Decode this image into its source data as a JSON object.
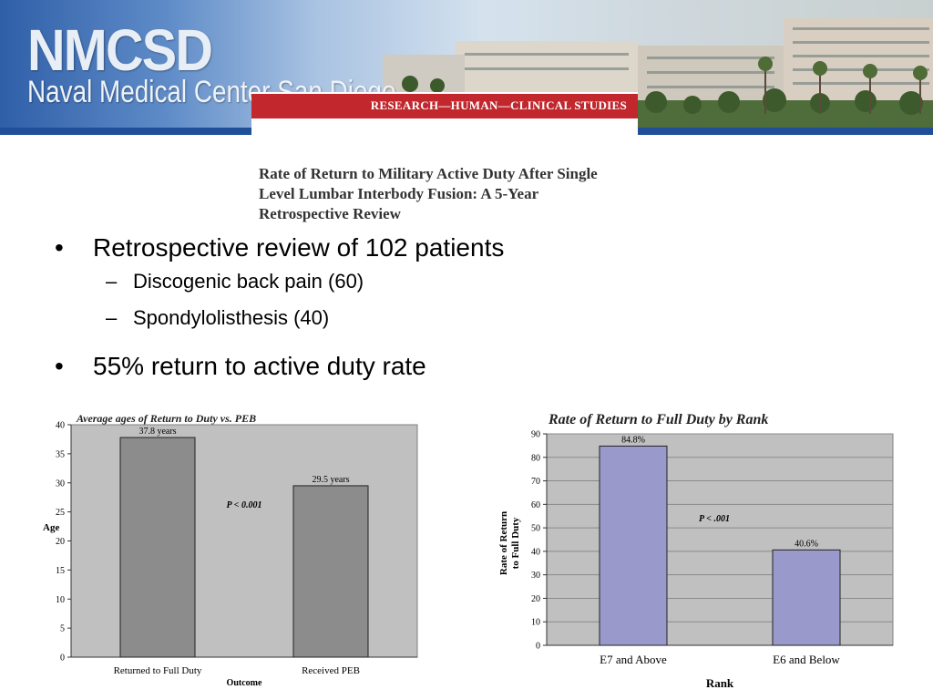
{
  "header": {
    "logo_main": "NMCSD",
    "logo_sub": "Naval Medical Center San Diego",
    "banner": "RESEARCH—HUMAN—CLINICAL STUDIES",
    "colors": {
      "banner": "#c1272d",
      "band": "#1f4f99"
    }
  },
  "paper_title": {
    "line1": "Rate of Return to Military Active Duty After Single",
    "line2": "Level Lumbar Interbody Fusion: A 5-Year",
    "line3": "Retrospective Review"
  },
  "bullets": [
    {
      "text": "Retrospective review of 102 patients",
      "level": 1
    },
    {
      "text": "Discogenic back pain (60)",
      "level": 2
    },
    {
      "text": "Spondylolisthesis (40)",
      "level": 2
    },
    {
      "text": "55% return to active duty rate",
      "level": 1
    }
  ],
  "bullet_markers": {
    "level1": "•",
    "level2": "–"
  },
  "chart_data": [
    {
      "type": "bar",
      "title": "Average ages of Return to Duty vs. PEB",
      "categories": [
        "Returned to Full Duty",
        "Received PEB"
      ],
      "values": [
        37.8,
        29.5
      ],
      "data_labels": [
        "37.8 years",
        "29.5 years"
      ],
      "xlabel": "Outcome",
      "ylabel": "Age",
      "ylim": [
        0,
        40
      ],
      "yticks": [
        0,
        5,
        10,
        15,
        20,
        25,
        30,
        35,
        40
      ],
      "annotation": "P < 0.001",
      "grid": false,
      "colors": {
        "bar": "#8c8c8c",
        "plot_bg": "#c0c0c0"
      }
    },
    {
      "type": "bar",
      "title": "Rate of Return to Full Duty by Rank",
      "categories": [
        "E7 and Above",
        "E6 and Below"
      ],
      "values": [
        84.8,
        40.6
      ],
      "data_labels": [
        "84.8%",
        "40.6%"
      ],
      "xlabel": "Rank",
      "ylabel": "Rate of Return to Full Duty",
      "ylim": [
        0,
        90
      ],
      "yticks": [
        0,
        10,
        20,
        30,
        40,
        50,
        60,
        70,
        80,
        90
      ],
      "annotation": "P < .001",
      "grid": true,
      "colors": {
        "bar": "#9999cc",
        "plot_bg": "#c0c0c0"
      }
    }
  ]
}
